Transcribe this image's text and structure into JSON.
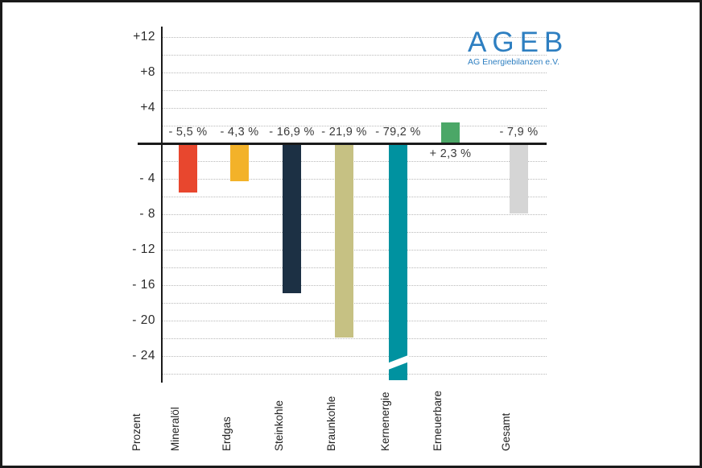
{
  "frame": {
    "background": "#ffffff",
    "border_color": "#1a1a1a",
    "gridline_color": "#b9b9b9"
  },
  "logo": {
    "title": "AGEB",
    "subtitle": "AG Energiebilanzen e.V.",
    "color": "#2e7fc1"
  },
  "chart_data": {
    "type": "bar",
    "title": "",
    "xlabel": "",
    "ylabel": "Prozent",
    "ylim": [
      -26,
      13
    ],
    "grid": "horizontal dotted lines every 2 units",
    "legend": "none",
    "categories": [
      "Mineralöl",
      "Erdgas",
      "Steinkohle",
      "Braunkohle",
      "Kernenergie",
      "Erneuerbare",
      "Gesamt"
    ],
    "values": [
      -5.5,
      -4.3,
      -16.9,
      -21.9,
      -79.2,
      2.3,
      -7.9
    ],
    "value_labels": [
      "- 5,5 %",
      "- 4,3 %",
      "- 16,9 %",
      "- 21,9 %",
      "- 79,2 %",
      "+ 2,3 %",
      "- 7,9 %"
    ],
    "bar_colors": [
      "#e8472e",
      "#f3b229",
      "#1c3044",
      "#c6c183",
      "#0092a0",
      "#4ba767",
      "#d5d5d5"
    ],
    "y_ticks": [
      {
        "v": 12,
        "label": "+12"
      },
      {
        "v": 8,
        "label": "+8"
      },
      {
        "v": 4,
        "label": "+4"
      },
      {
        "v": -4,
        "label": "- 4"
      },
      {
        "v": -8,
        "label": "- 8"
      },
      {
        "v": -12,
        "label": "- 12"
      },
      {
        "v": -16,
        "label": "- 16"
      },
      {
        "v": -20,
        "label": "- 20"
      },
      {
        "v": -24,
        "label": "- 24"
      }
    ],
    "axis_break": {
      "category": "Kernenergie",
      "note": "bar clipped below axis range with white diagonal break mark"
    }
  }
}
